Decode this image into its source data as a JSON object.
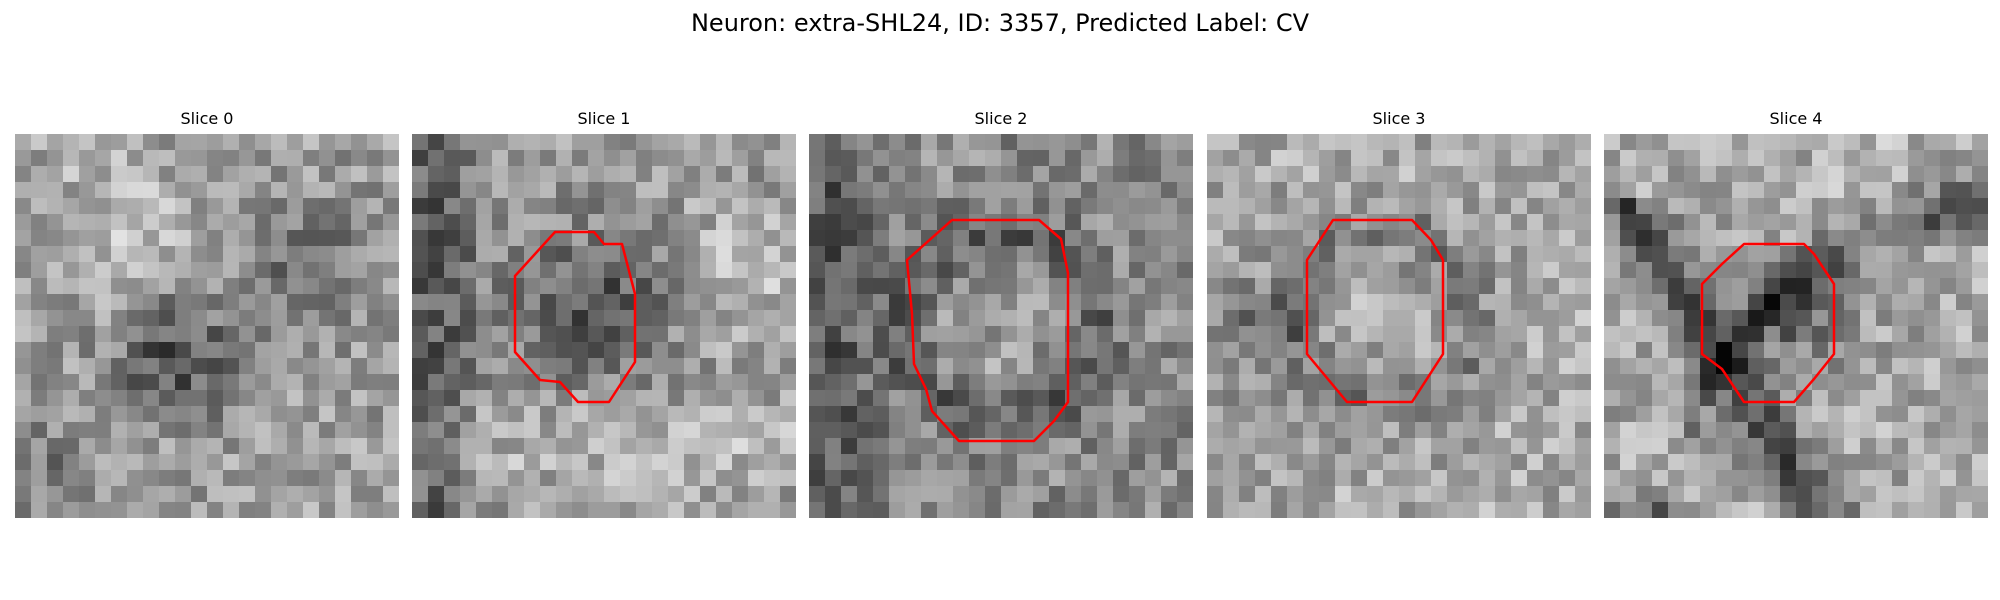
{
  "figure": {
    "title": "Neuron: extra-SHL24, ID: 3357, Predicted Label: CV",
    "outline_color": "#ff0000"
  },
  "panels": [
    {
      "title": "Slice 0",
      "has_outline": false
    },
    {
      "title": "Slice 1",
      "has_outline": true
    },
    {
      "title": "Slice 2",
      "has_outline": true
    },
    {
      "title": "Slice 3",
      "has_outline": true
    },
    {
      "title": "Slice 4",
      "has_outline": true
    }
  ]
}
